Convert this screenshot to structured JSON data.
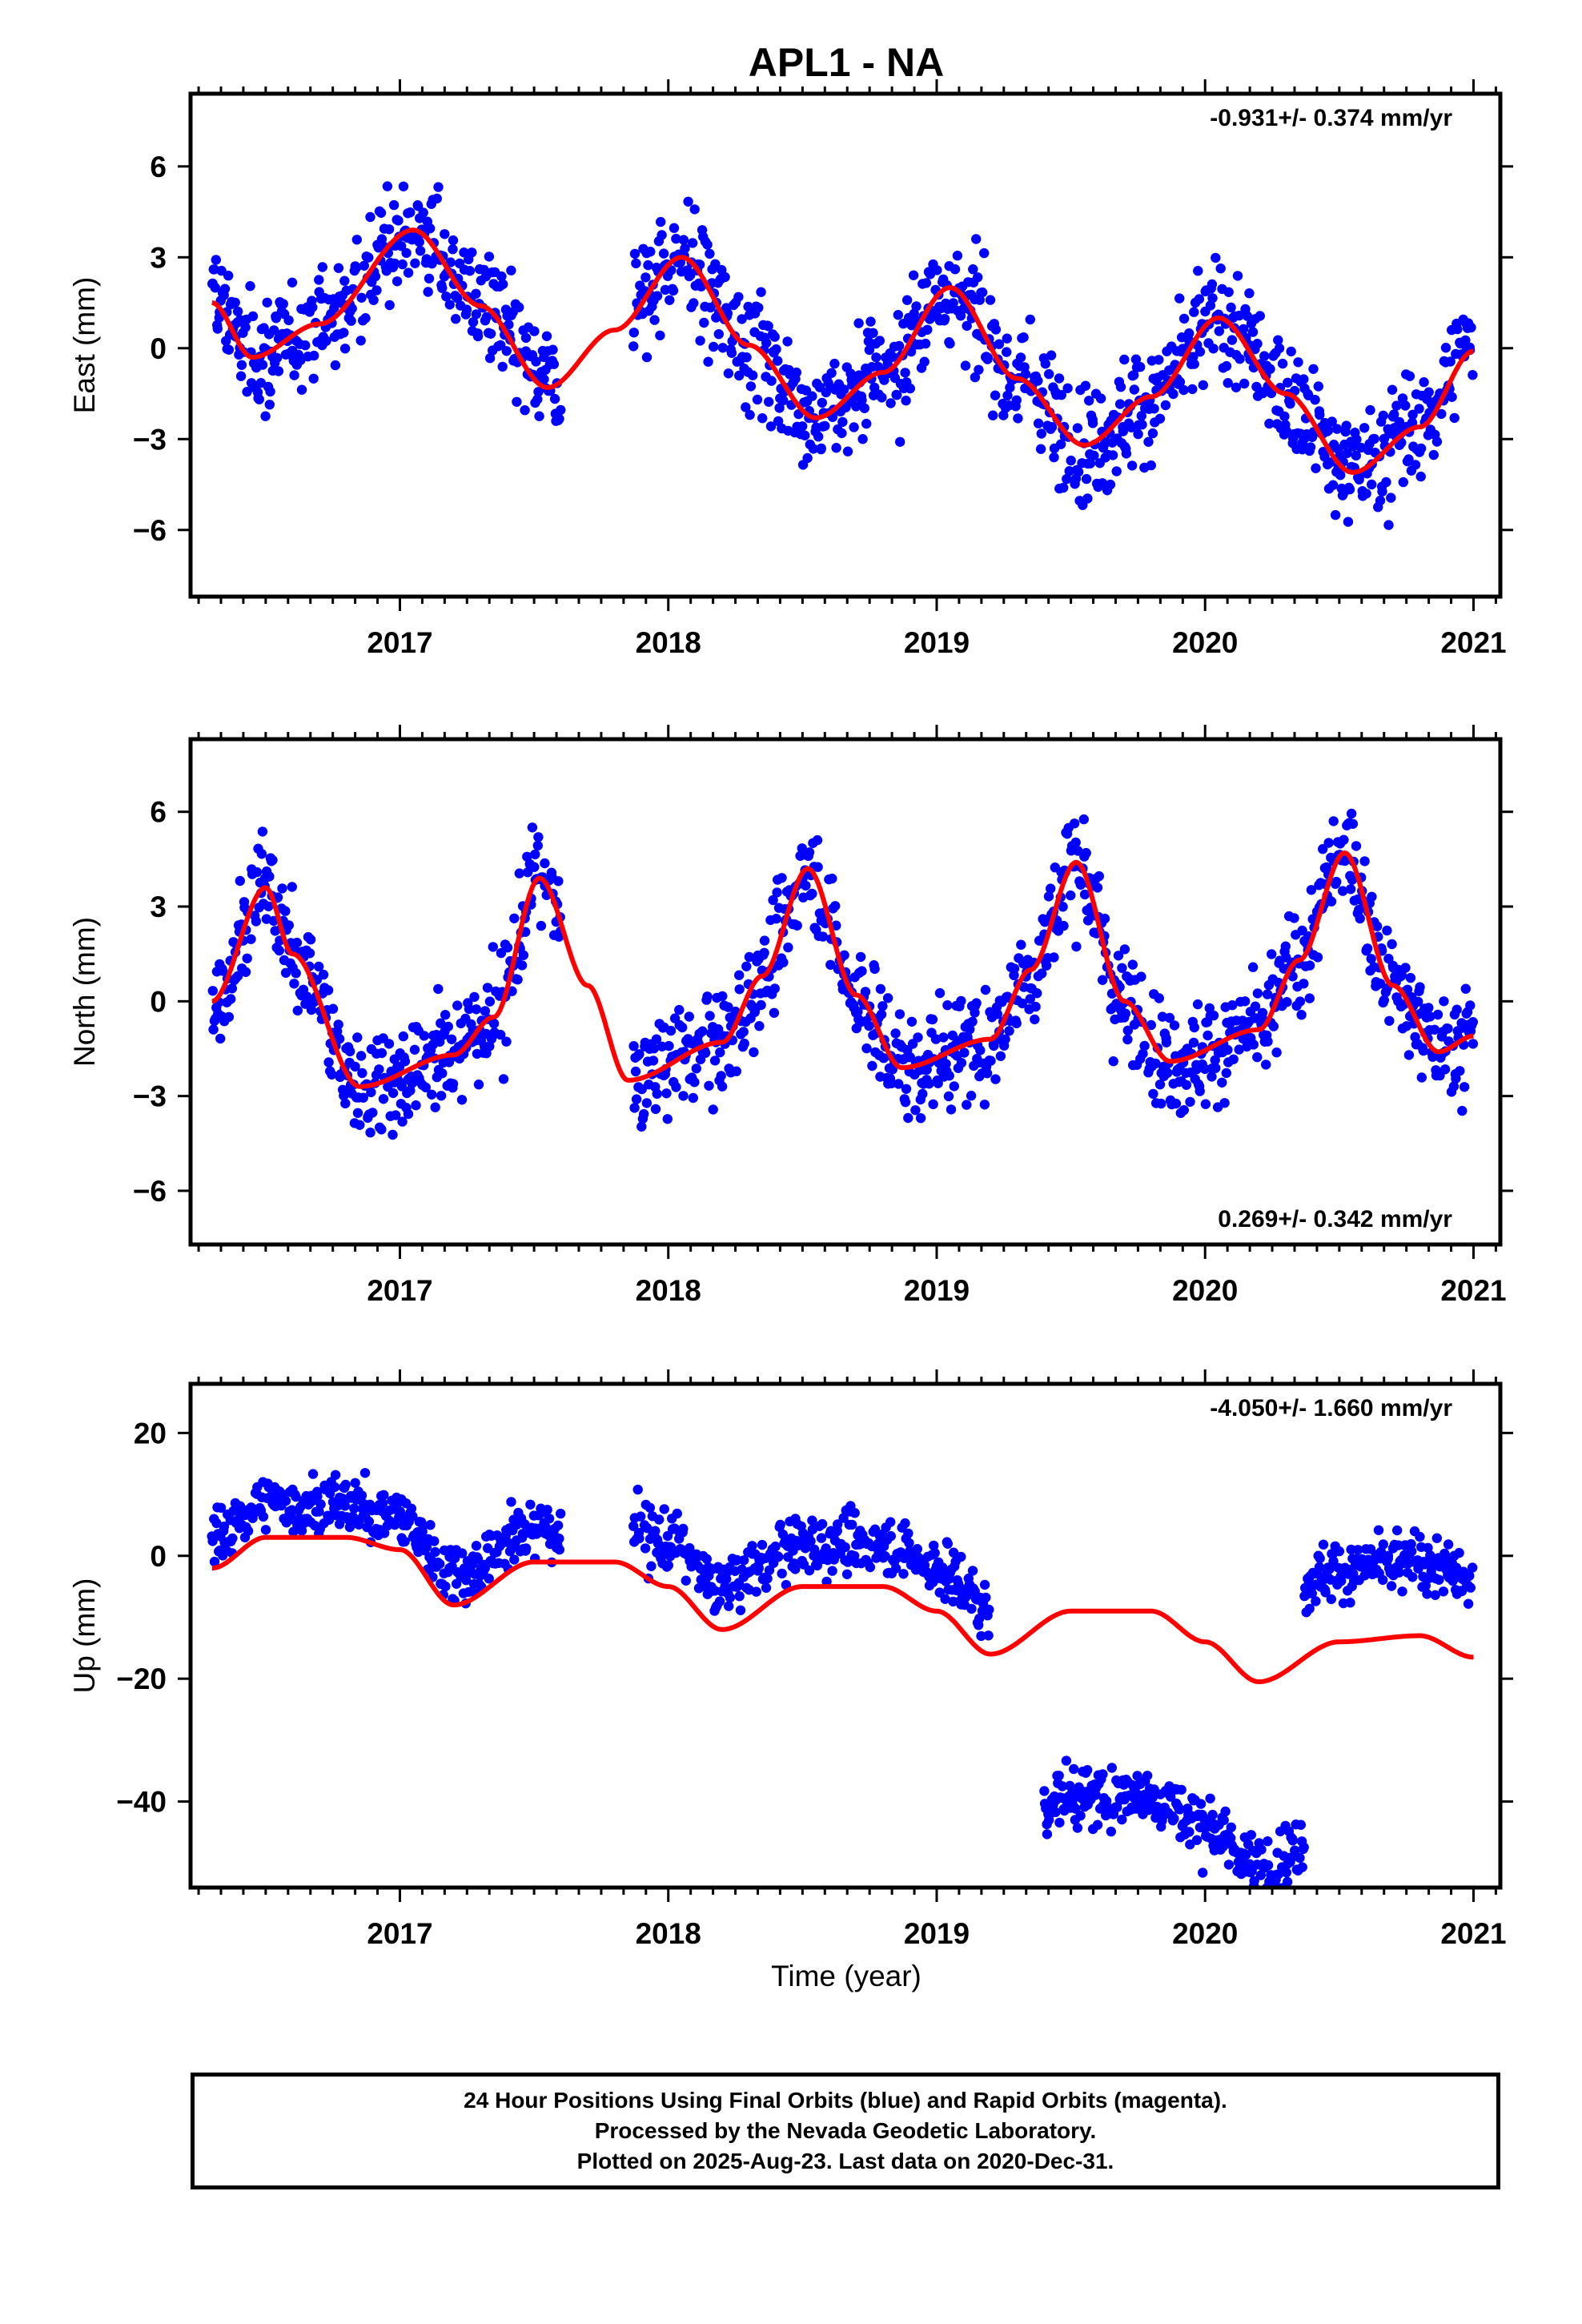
{
  "title": "APL1 - NA",
  "xlabel": "Time (year)",
  "footer": {
    "line1": "24 Hour Positions Using Final Orbits (blue) and Rapid Orbits (magenta).",
    "line2": "Processed by the Nevada Geodetic Laboratory.",
    "line3": "Plotted on 2025-Aug-23. Last data on 2020-Dec-31."
  },
  "colors": {
    "points": "#0000ff",
    "fit": "#ff0000",
    "axes": "#000000"
  },
  "chart_data": [
    {
      "type": "scatter",
      "panel": "east",
      "ylabel": "East (mm)",
      "rate_text": "-0.931+/- 0.374 mm/yr",
      "rate_placement": "top-right",
      "xlim": [
        2016.22,
        2021.1
      ],
      "ylim": [
        -8.2,
        8.4
      ],
      "x_ticks": [
        "2017",
        "2018",
        "2019",
        "2020",
        "2021"
      ],
      "y_ticks": [
        "6",
        "3",
        "0",
        "-3",
        "-6"
      ],
      "fit_series": {
        "name": "",
        "x": [
          2016.3,
          2016.45,
          2016.7,
          2017.05,
          2017.3,
          2017.55,
          2017.8,
          2018.05,
          2018.3,
          2018.55,
          2018.8,
          2019.05,
          2019.3,
          2019.55,
          2019.8,
          2020.05,
          2020.3,
          2020.55,
          2020.8,
          2021.0
        ],
        "y": [
          1.5,
          -0.3,
          0.8,
          3.9,
          1.4,
          -1.3,
          0.6,
          3.0,
          0.1,
          -2.3,
          -0.8,
          2.0,
          -1.0,
          -3.2,
          -1.6,
          1.0,
          -1.5,
          -4.1,
          -2.6,
          -0.1
        ]
      },
      "points": {
        "segments": [
          [
            2016.3,
            2017.6
          ],
          [
            2017.87,
            2019.42
          ],
          [
            2019.42,
            2021.0
          ]
        ],
        "amp_scatter_mm": 1.6,
        "note": ""
      }
    },
    {
      "type": "scatter",
      "panel": "north",
      "ylabel": "North (mm)",
      "rate_text": "0.269+/- 0.342 mm/yr",
      "rate_placement": "bottom-right",
      "xlim": [
        2016.22,
        2021.1
      ],
      "ylim": [
        -7.7,
        8.3
      ],
      "x_ticks": [
        "2017",
        "2018",
        "2019",
        "2020",
        "2021"
      ],
      "y_ticks": [
        "6",
        "3",
        "0",
        "-3",
        "-6"
      ],
      "fit_series": {
        "name": "",
        "x": [
          2016.3,
          2016.5,
          2016.6,
          2016.85,
          2017.2,
          2017.35,
          2017.52,
          2017.7,
          2017.85,
          2018.2,
          2018.35,
          2018.52,
          2018.7,
          2018.87,
          2019.2,
          2019.35,
          2019.52,
          2019.7,
          2019.87,
          2020.2,
          2020.35,
          2020.52,
          2020.7,
          2020.87,
          2021.0
        ],
        "y": [
          0.0,
          3.6,
          1.5,
          -2.7,
          -1.7,
          -0.5,
          3.9,
          0.5,
          -2.5,
          -1.3,
          0.8,
          4.2,
          0.2,
          -2.1,
          -1.2,
          1.0,
          4.4,
          0.0,
          -1.9,
          -0.9,
          1.3,
          4.7,
          0.5,
          -1.6,
          -1.1
        ]
      },
      "points": {
        "segments": [
          [
            2016.3,
            2017.6
          ],
          [
            2017.87,
            2021.0
          ]
        ],
        "amp_scatter_mm": 1.4,
        "note": ""
      }
    },
    {
      "type": "scatter",
      "panel": "up",
      "ylabel": "Up (mm)",
      "rate_text": "-4.050+/- 1.660 mm/yr",
      "rate_placement": "top-right",
      "xlim": [
        2016.22,
        2021.1
      ],
      "ylim": [
        -54,
        28
      ],
      "x_ticks": [
        "2017",
        "2018",
        "2019",
        "2020",
        "2021"
      ],
      "y_ticks": [
        "20",
        "0",
        "-20",
        "-40"
      ],
      "fit_series": {
        "name": "",
        "x": [
          2016.3,
          2016.5,
          2016.8,
          2017.0,
          2017.2,
          2017.5,
          2017.8,
          2018.0,
          2018.2,
          2018.5,
          2018.8,
          2019.0,
          2019.2,
          2019.5,
          2019.8,
          2020.0,
          2020.2,
          2020.5,
          2020.8,
          2021.0
        ],
        "y": [
          -2,
          3,
          3,
          1,
          -8,
          -1,
          -1,
          -5,
          -12,
          -5,
          -5,
          -9,
          -16,
          -9,
          -9,
          -14,
          -20.5,
          -14,
          -13,
          -16.5
        ]
      },
      "points": {
        "segments": [
          [
            2016.3,
            2017.6
          ],
          [
            2017.87,
            2019.2
          ],
          [
            2019.4,
            2020.37
          ],
          [
            2020.37,
            2021.0
          ]
        ],
        "amp_scatter_mm": 4.0,
        "note": ""
      }
    }
  ]
}
